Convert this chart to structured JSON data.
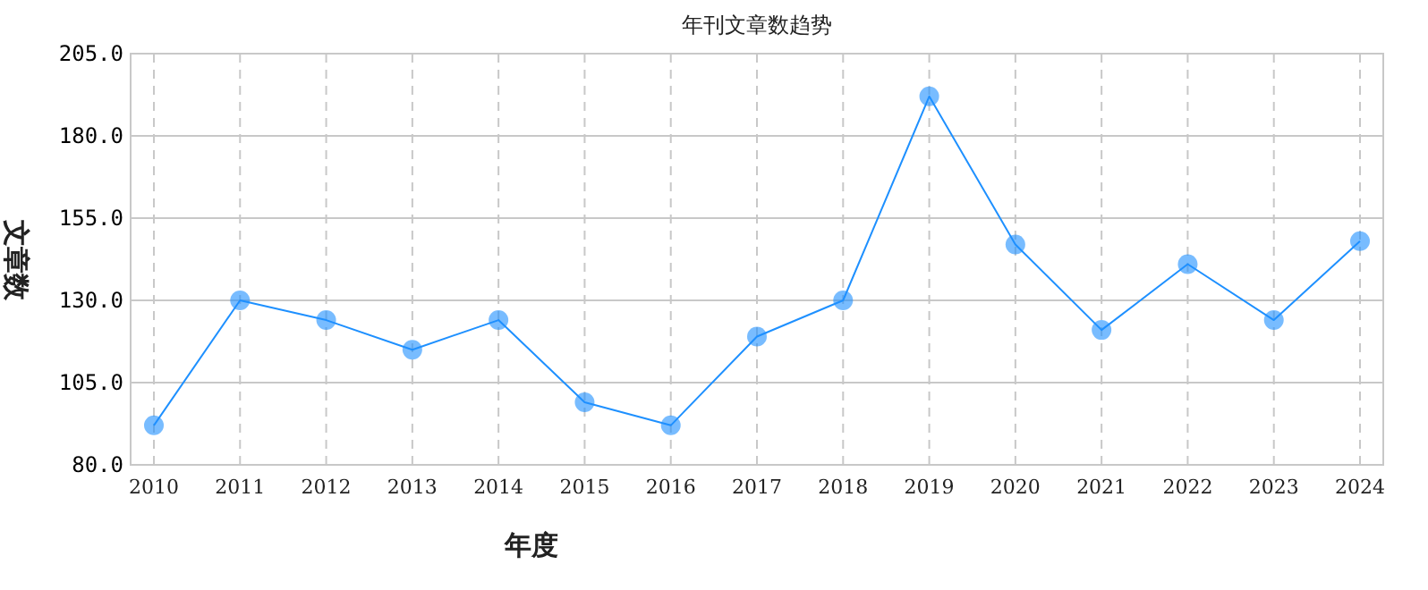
{
  "chart_data": {
    "type": "line",
    "title": "年刊文章数趋势",
    "xlabel": "年度",
    "ylabel": "文章数",
    "categories": [
      "2010",
      "2011",
      "2012",
      "2013",
      "2014",
      "2015",
      "2016",
      "2017",
      "2018",
      "2019",
      "2020",
      "2021",
      "2022",
      "2023",
      "2024"
    ],
    "series": [
      {
        "color": "#1e90ff",
        "values": [
          92,
          130,
          124,
          115,
          124,
          99,
          92,
          119,
          130,
          192,
          147,
          121,
          141,
          124,
          148
        ]
      }
    ],
    "ylim": [
      80,
      205
    ],
    "yticks": [
      {
        "value": 80,
        "label": "80.0"
      },
      {
        "value": 105,
        "label": "105.0"
      },
      {
        "value": 130,
        "label": "130.0"
      },
      {
        "value": 155,
        "label": "155.0"
      },
      {
        "value": 180,
        "label": "180.0"
      },
      {
        "value": 205,
        "label": "205.0"
      }
    ],
    "grid": true,
    "marker": "circle",
    "line_style": "solid"
  }
}
